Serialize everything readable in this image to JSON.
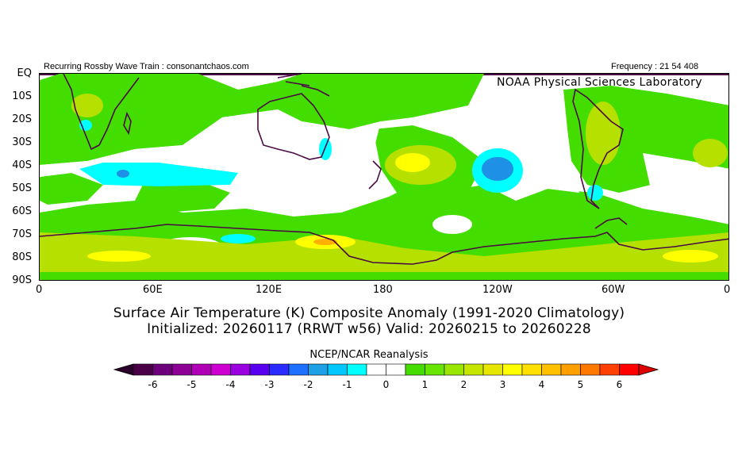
{
  "header": {
    "left_note": "Recurring Rossby Wave Train : consonantchaos.com",
    "right_note": "Frequency : 21 54 408",
    "lab_name": "NOAA Physical Sciences Laboratory"
  },
  "map": {
    "lat_labels": [
      "EQ",
      "10S",
      "20S",
      "30S",
      "40S",
      "50S",
      "60S",
      "70S",
      "80S",
      "90S"
    ],
    "lon_labels": [
      "0",
      "60E",
      "120E",
      "180",
      "120W",
      "60W",
      "0"
    ],
    "colors": {
      "coast": "#4a0a44",
      "land_anom_light": "#44dd00",
      "cyan": "#00ffff",
      "blue": "#1e90e6",
      "yellow_green": "#b6e000",
      "yellow": "#ffff00",
      "orange": "#ffb000"
    }
  },
  "title": {
    "line1": "Surface Air Temperature (K) Composite Anomaly (1991-2020 Climatology)",
    "line2": "Initialized: 20260117 (RRWT w56) Valid: 20260215 to 20260228"
  },
  "colorbar": {
    "label": "NCEP/NCAR Reanalysis",
    "ticks": [
      "-6",
      "-5",
      "-4",
      "-3",
      "-2",
      "-1",
      "0",
      "1",
      "2",
      "3",
      "4",
      "5",
      "6"
    ],
    "colors": [
      "#4a0046",
      "#6c007a",
      "#8c0096",
      "#b000b6",
      "#cc00d0",
      "#9a00e0",
      "#5a00f0",
      "#2a2cff",
      "#1e70ff",
      "#1ea0e6",
      "#00c8ff",
      "#00ffff",
      "#ffffff",
      "#ffffff",
      "#44dd00",
      "#66e600",
      "#99e600",
      "#c6e600",
      "#e6e600",
      "#ffff00",
      "#ffe000",
      "#ffc000",
      "#ffa000",
      "#ff7800",
      "#ff4000",
      "#ff0000"
    ],
    "end_low": "#2a002a",
    "end_high": "#dd0000"
  }
}
